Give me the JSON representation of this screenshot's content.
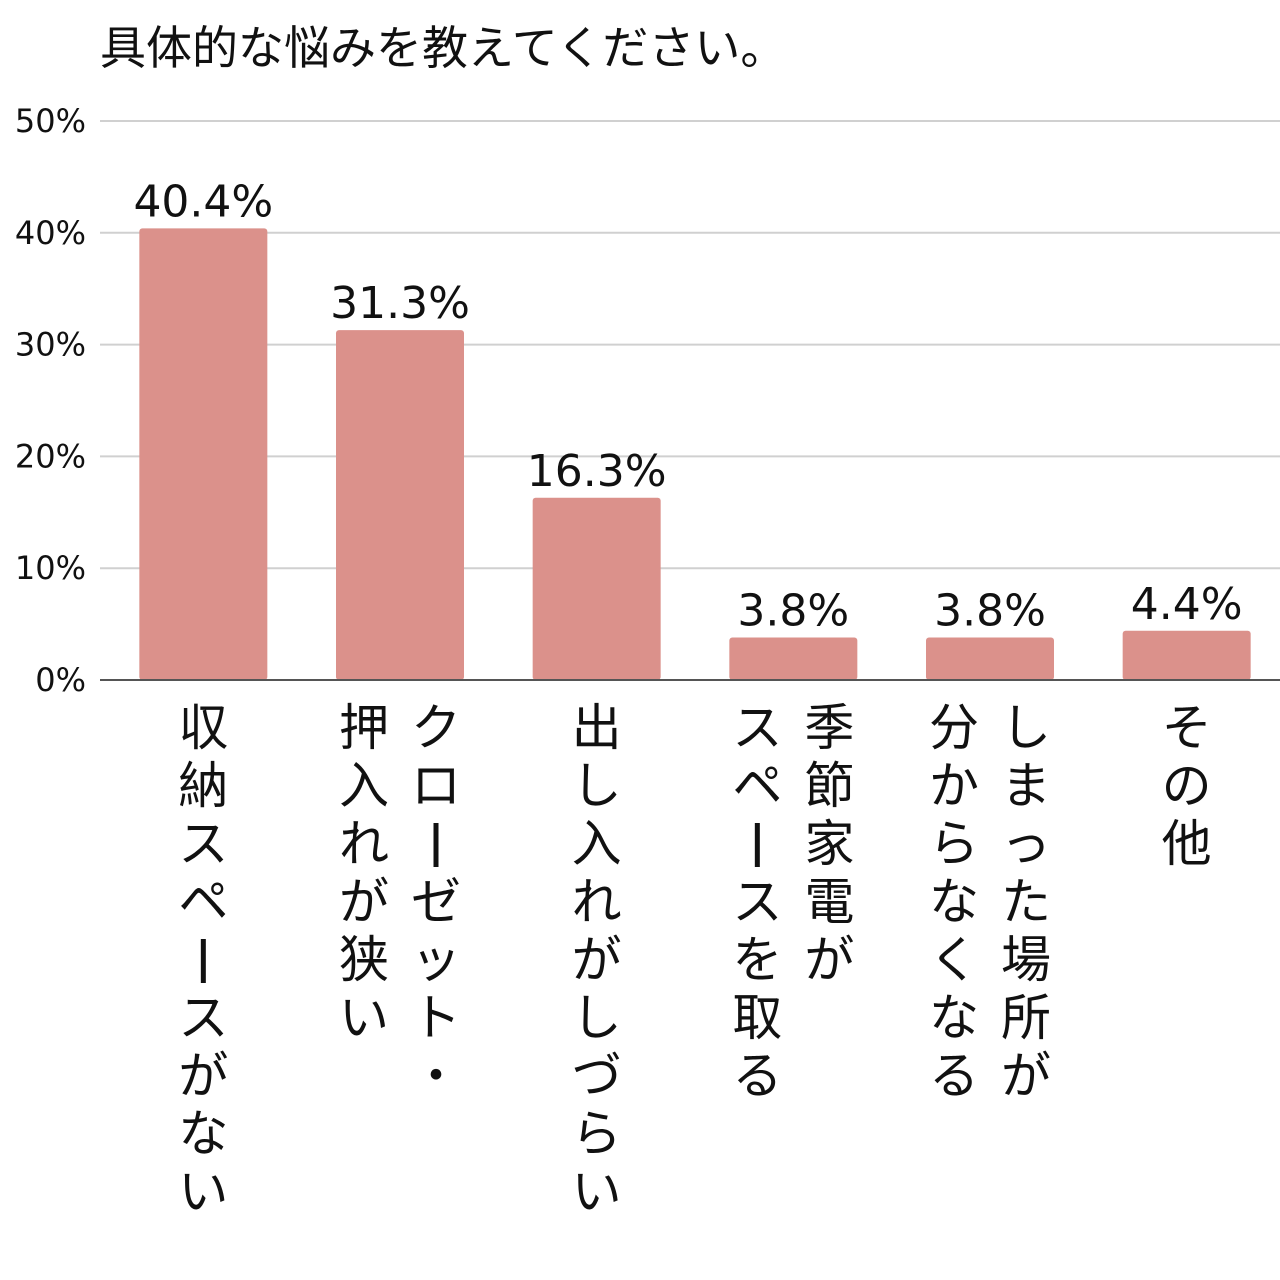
{
  "chart_data": {
    "type": "bar",
    "title": "具体的な悩みを教えてください。",
    "ylim": [
      0,
      50
    ],
    "yticks": [
      "0%",
      "10%",
      "20%",
      "30%",
      "40%",
      "50%"
    ],
    "grid": true,
    "bar_color": "#db918b",
    "series": [
      {
        "values": [
          40.4,
          31.3,
          16.3,
          3.8,
          3.8,
          4.4
        ],
        "value_labels": [
          "40.4%",
          "31.3%",
          "16.3%",
          "3.8%",
          "3.8%",
          "4.4%"
        ]
      }
    ],
    "categories": [
      "収納スペースがない",
      "クローゼット・押入れが狭い",
      "出し入れがしづらい",
      "季節家電がスペースを取る",
      "しまった場所が分からなくなる",
      "その他"
    ],
    "category_lines": [
      [
        "収納スペースがない"
      ],
      [
        "クローゼット・",
        "押入れが狭い"
      ],
      [
        "出し入れがしづらい"
      ],
      [
        "季節家電が",
        "スペースを取る"
      ],
      [
        "しまった場所が",
        "分からなくなる"
      ],
      [
        "その他"
      ]
    ]
  }
}
